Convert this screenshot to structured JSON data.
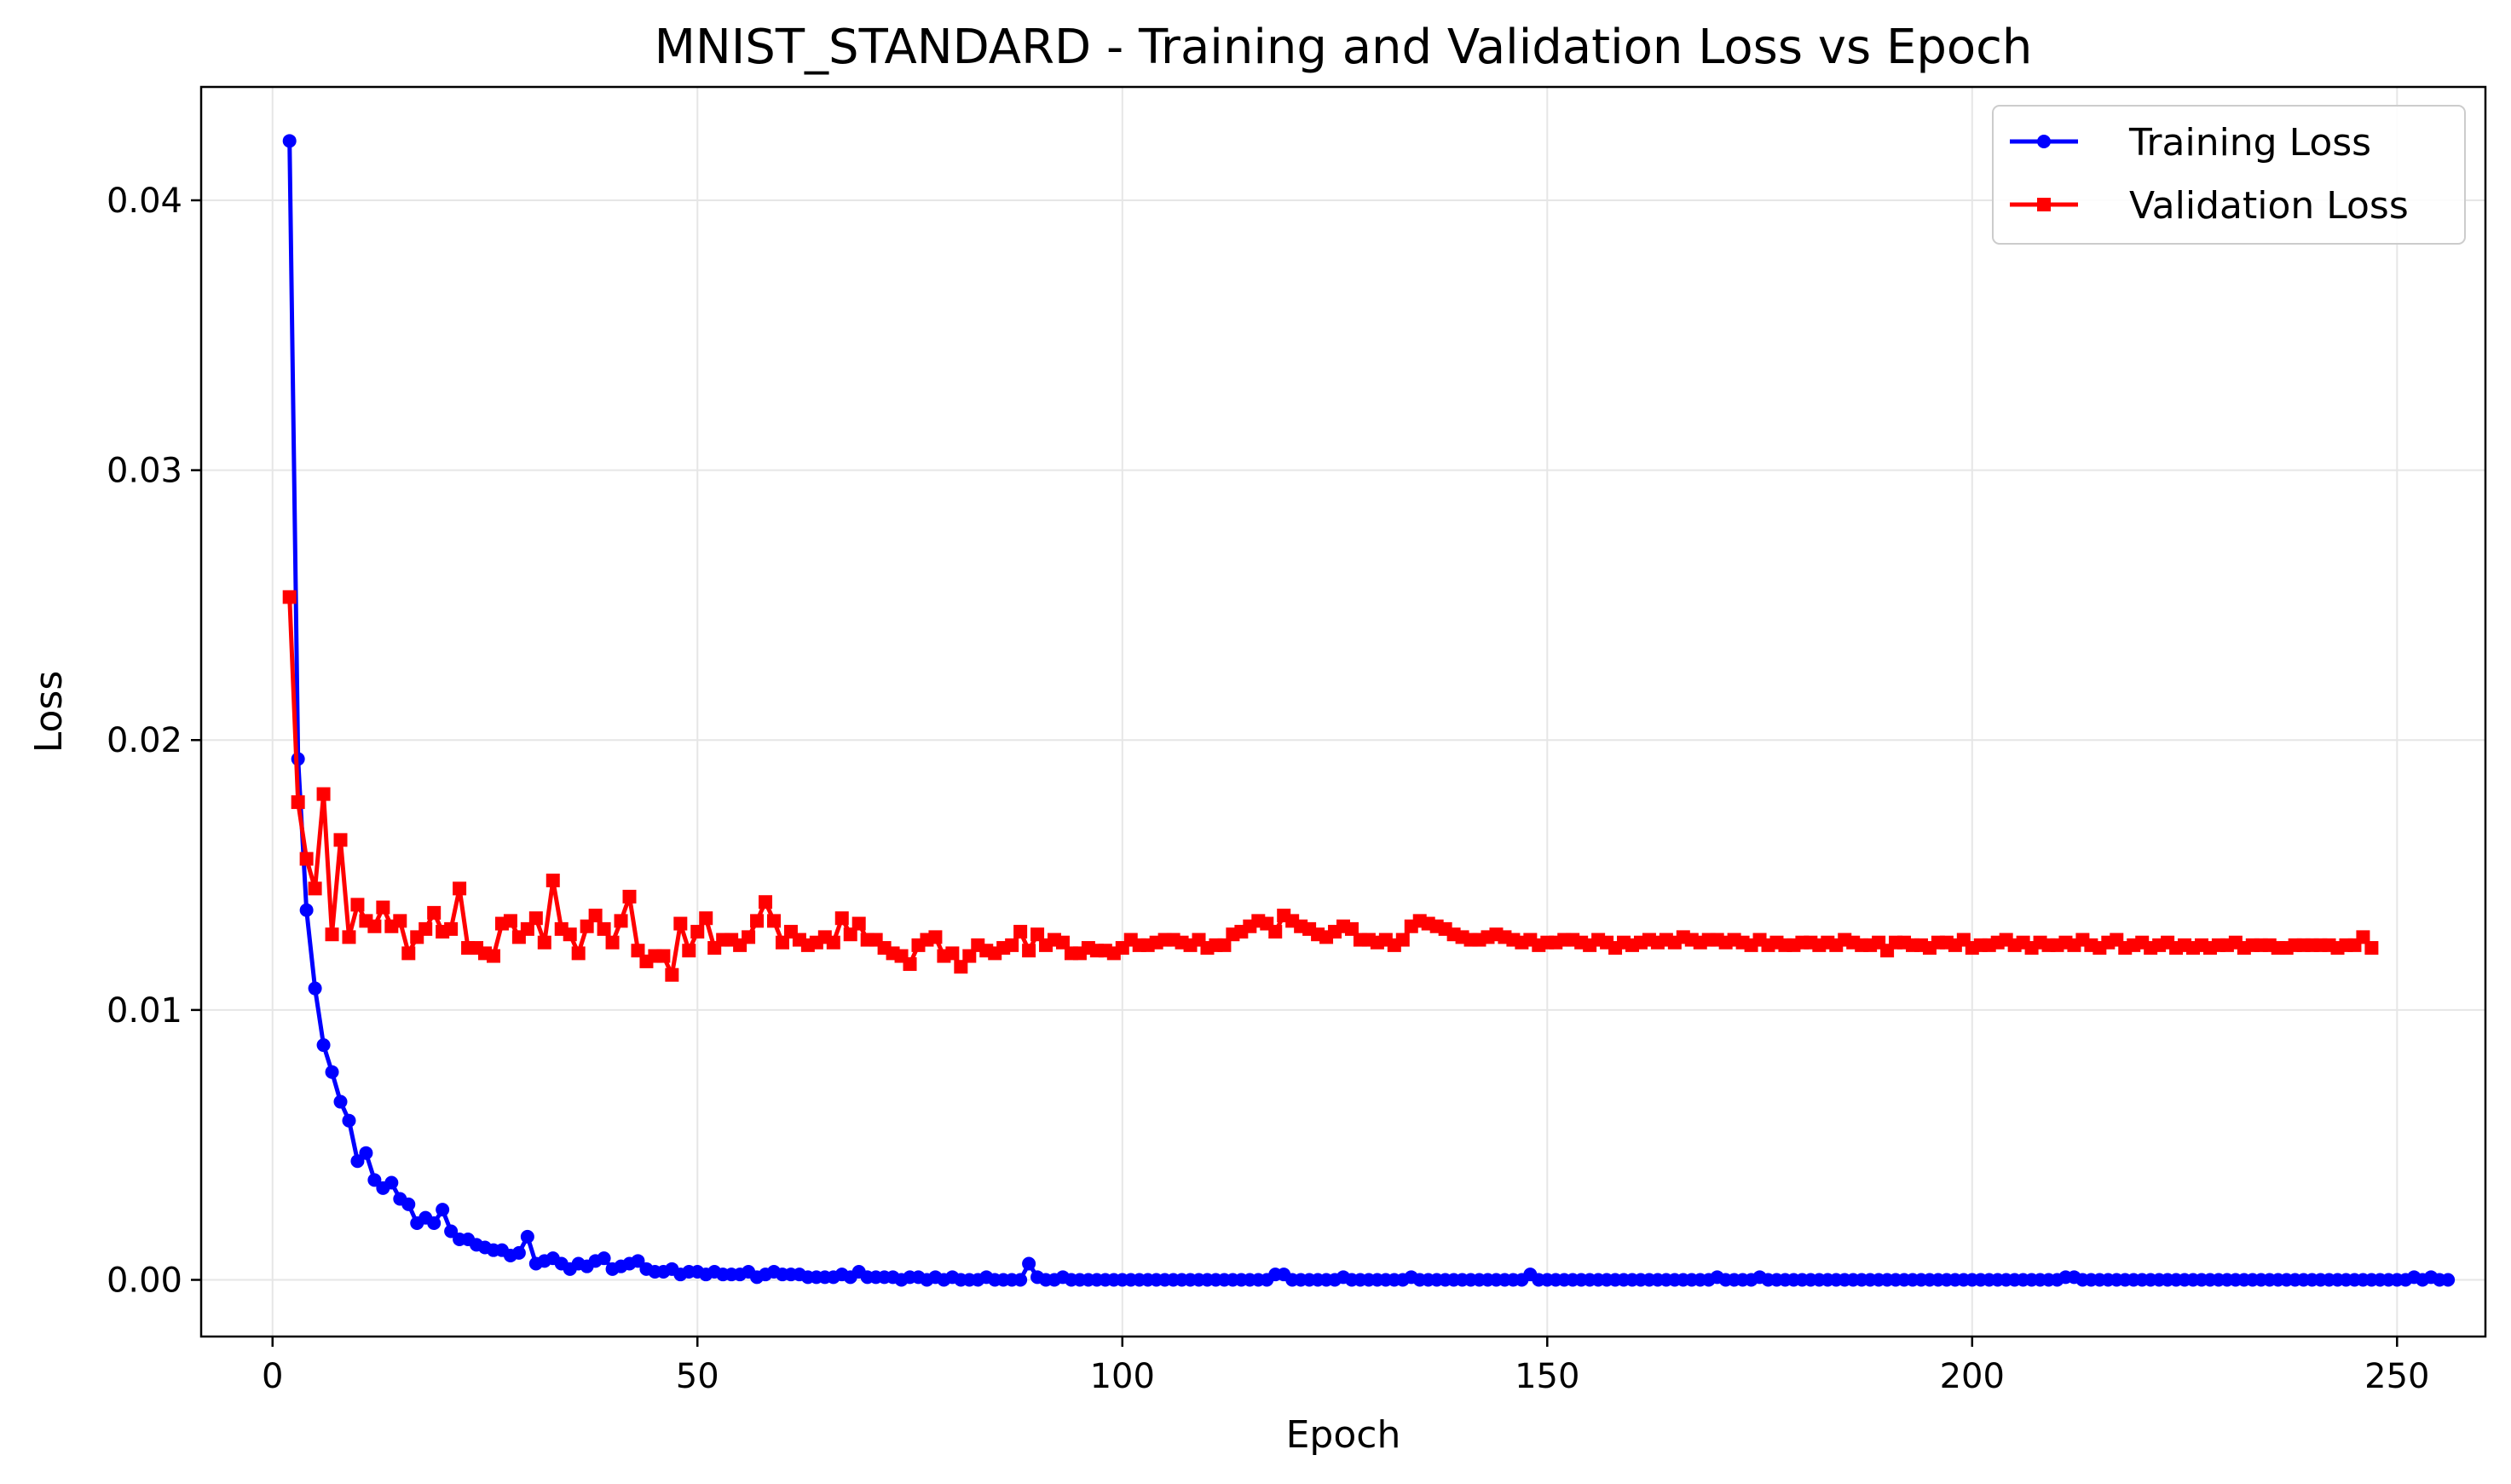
{
  "chart_data": {
    "type": "line",
    "title": "MNIST_STANDARD - Training and Validation Loss vs Epoch",
    "xlabel": "Epoch",
    "ylabel": "Loss",
    "xlim": [
      -8.4,
      260.4
    ],
    "ylim": [
      -0.0021,
      0.0442
    ],
    "xticks": [
      0,
      50,
      100,
      150,
      200,
      250
    ],
    "xtick_labels": [
      "0",
      "50",
      "100",
      "150",
      "200",
      "250"
    ],
    "yticks": [
      0.0,
      0.01,
      0.02,
      0.03,
      0.04
    ],
    "ytick_labels": [
      "0.00",
      "0.01",
      "0.02",
      "0.03",
      "0.04"
    ],
    "grid": true,
    "legend": "top-right",
    "x_start": 2,
    "series": [
      {
        "name": "Training Loss",
        "color": "#0000ff",
        "marker": "circle",
        "values": [
          0.0422,
          0.0193,
          0.0137,
          0.0108,
          0.0087,
          0.0077,
          0.0066,
          0.0059,
          0.0044,
          0.0047,
          0.0037,
          0.0034,
          0.0036,
          0.003,
          0.0028,
          0.0021,
          0.0023,
          0.0021,
          0.0026,
          0.0018,
          0.0015,
          0.0015,
          0.0013,
          0.0012,
          0.0011,
          0.0011,
          0.0009,
          0.001,
          0.0016,
          0.0006,
          0.0007,
          0.0008,
          0.0006,
          0.0004,
          0.0006,
          0.0005,
          0.0007,
          0.0008,
          0.0004,
          0.0005,
          0.0006,
          0.0007,
          0.0004,
          0.0003,
          0.0003,
          0.0004,
          0.0002,
          0.0003,
          0.0003,
          0.0002,
          0.0003,
          0.0002,
          0.0002,
          0.0002,
          0.0003,
          0.0001,
          0.0002,
          0.0003,
          0.0002,
          0.0002,
          0.0002,
          0.0001,
          0.0001,
          0.0001,
          0.0001,
          0.0002,
          0.0001,
          0.0003,
          0.0001,
          0.0001,
          0.0001,
          0.0001,
          0.0,
          0.0001,
          0.0001,
          0.0,
          0.0001,
          0.0,
          0.0001,
          0.0,
          0.0,
          0.0,
          0.0001,
          0.0,
          0.0,
          0.0,
          0.0,
          0.0006,
          0.0001,
          0.0,
          0.0,
          0.0001,
          0.0,
          0.0,
          0.0,
          0.0,
          0.0,
          0.0,
          0.0,
          0.0,
          0.0,
          0.0,
          0.0,
          0.0,
          0.0,
          0.0,
          0.0,
          0.0,
          0.0,
          0.0,
          0.0,
          0.0,
          0.0,
          0.0,
          0.0,
          0.0,
          0.0002,
          0.0002,
          0.0,
          0.0,
          0.0,
          0.0,
          0.0,
          0.0,
          0.0001,
          0.0,
          0.0,
          0.0,
          0.0,
          0.0,
          0.0,
          0.0,
          0.0001,
          0.0,
          0.0,
          0.0,
          0.0,
          0.0,
          0.0,
          0.0,
          0.0,
          0.0,
          0.0,
          0.0,
          0.0,
          0.0,
          0.0002,
          0.0,
          0.0,
          0.0,
          0.0,
          0.0,
          0.0,
          0.0,
          0.0,
          0.0,
          0.0,
          0.0,
          0.0,
          0.0,
          0.0,
          0.0,
          0.0,
          0.0,
          0.0,
          0.0,
          0.0,
          0.0,
          0.0001,
          0.0,
          0.0,
          0.0,
          0.0,
          0.0001,
          0.0,
          0.0,
          0.0,
          0.0,
          0.0,
          0.0,
          0.0,
          0.0,
          0.0,
          0.0,
          0.0,
          0.0,
          0.0,
          0.0,
          0.0,
          0.0,
          0.0,
          0.0,
          0.0,
          0.0,
          0.0,
          0.0,
          0.0,
          0.0,
          0.0,
          0.0,
          0.0,
          0.0,
          0.0,
          0.0,
          0.0,
          0.0,
          0.0,
          0.0,
          0.0,
          0.0001,
          0.0001,
          0.0,
          0.0,
          0.0,
          0.0,
          0.0,
          0.0,
          0.0,
          0.0,
          0.0,
          0.0,
          0.0,
          0.0,
          0.0,
          0.0,
          0.0,
          0.0,
          0.0,
          0.0,
          0.0,
          0.0,
          0.0,
          0.0,
          0.0,
          0.0,
          0.0,
          0.0,
          0.0,
          0.0,
          0.0,
          0.0,
          0.0,
          0.0,
          0.0,
          0.0,
          0.0,
          0.0,
          0.0,
          0.0,
          0.0,
          0.0001,
          0.0,
          0.0001,
          0.0,
          0.0
        ]
      },
      {
        "name": "Validation Loss",
        "color": "#ff0000",
        "marker": "square",
        "values": [
          0.0253,
          0.0177,
          0.0156,
          0.0145,
          0.018,
          0.0128,
          0.0163,
          0.0127,
          0.0139,
          0.0133,
          0.0131,
          0.0138,
          0.0131,
          0.0133,
          0.0121,
          0.0127,
          0.013,
          0.0136,
          0.0129,
          0.013,
          0.0145,
          0.0123,
          0.0123,
          0.0121,
          0.012,
          0.0132,
          0.0133,
          0.0127,
          0.013,
          0.0134,
          0.0125,
          0.0148,
          0.013,
          0.0128,
          0.0121,
          0.0131,
          0.0135,
          0.013,
          0.0125,
          0.0133,
          0.0142,
          0.0122,
          0.0118,
          0.012,
          0.012,
          0.0113,
          0.0132,
          0.0122,
          0.0129,
          0.0134,
          0.0123,
          0.0126,
          0.0126,
          0.0124,
          0.0127,
          0.0133,
          0.014,
          0.0133,
          0.0125,
          0.0129,
          0.0126,
          0.0124,
          0.0125,
          0.0127,
          0.0125,
          0.0134,
          0.0128,
          0.0132,
          0.0126,
          0.0126,
          0.0123,
          0.0121,
          0.012,
          0.0117,
          0.0124,
          0.0126,
          0.0127,
          0.012,
          0.0121,
          0.0116,
          0.012,
          0.0124,
          0.0122,
          0.0121,
          0.0123,
          0.0124,
          0.0129,
          0.0122,
          0.0128,
          0.0124,
          0.0126,
          0.0125,
          0.0121,
          0.0121,
          0.0123,
          0.0122,
          0.0122,
          0.0121,
          0.0123,
          0.0126,
          0.0124,
          0.0124,
          0.0125,
          0.0126,
          0.0126,
          0.0125,
          0.0124,
          0.0126,
          0.0123,
          0.0124,
          0.0124,
          0.0128,
          0.0129,
          0.0131,
          0.0133,
          0.0132,
          0.0129,
          0.0135,
          0.0133,
          0.0131,
          0.013,
          0.0128,
          0.0127,
          0.0129,
          0.0131,
          0.013,
          0.0126,
          0.0126,
          0.0125,
          0.0126,
          0.0124,
          0.0126,
          0.0131,
          0.0133,
          0.0132,
          0.0131,
          0.013,
          0.0128,
          0.0127,
          0.0126,
          0.0126,
          0.0127,
          0.0128,
          0.0127,
          0.0126,
          0.0125,
          0.0126,
          0.0124,
          0.0125,
          0.0125,
          0.0126,
          0.0126,
          0.0125,
          0.0124,
          0.0126,
          0.0125,
          0.0123,
          0.0125,
          0.0124,
          0.0125,
          0.0126,
          0.0125,
          0.0126,
          0.0125,
          0.0127,
          0.0126,
          0.0125,
          0.0126,
          0.0126,
          0.0125,
          0.0126,
          0.0125,
          0.0124,
          0.0126,
          0.0124,
          0.0125,
          0.0124,
          0.0124,
          0.0125,
          0.0125,
          0.0124,
          0.0125,
          0.0124,
          0.0126,
          0.0125,
          0.0124,
          0.0124,
          0.0125,
          0.0122,
          0.0125,
          0.0125,
          0.0124,
          0.0124,
          0.0123,
          0.0125,
          0.0125,
          0.0124,
          0.0126,
          0.0123,
          0.0124,
          0.0124,
          0.0125,
          0.0126,
          0.0124,
          0.0125,
          0.0123,
          0.0125,
          0.0124,
          0.0124,
          0.0125,
          0.0124,
          0.0126,
          0.0124,
          0.0123,
          0.0125,
          0.0126,
          0.0123,
          0.0124,
          0.0125,
          0.0123,
          0.0124,
          0.0125,
          0.0123,
          0.0124,
          0.0123,
          0.0124,
          0.0123,
          0.0124,
          0.0124,
          0.0125,
          0.0123,
          0.0124,
          0.0124,
          0.0124,
          0.0123,
          0.0123,
          0.0124,
          0.0124,
          0.0124,
          0.0124,
          0.0124,
          0.0123,
          0.0124,
          0.0124,
          0.0127,
          0.0123
        ]
      }
    ]
  }
}
